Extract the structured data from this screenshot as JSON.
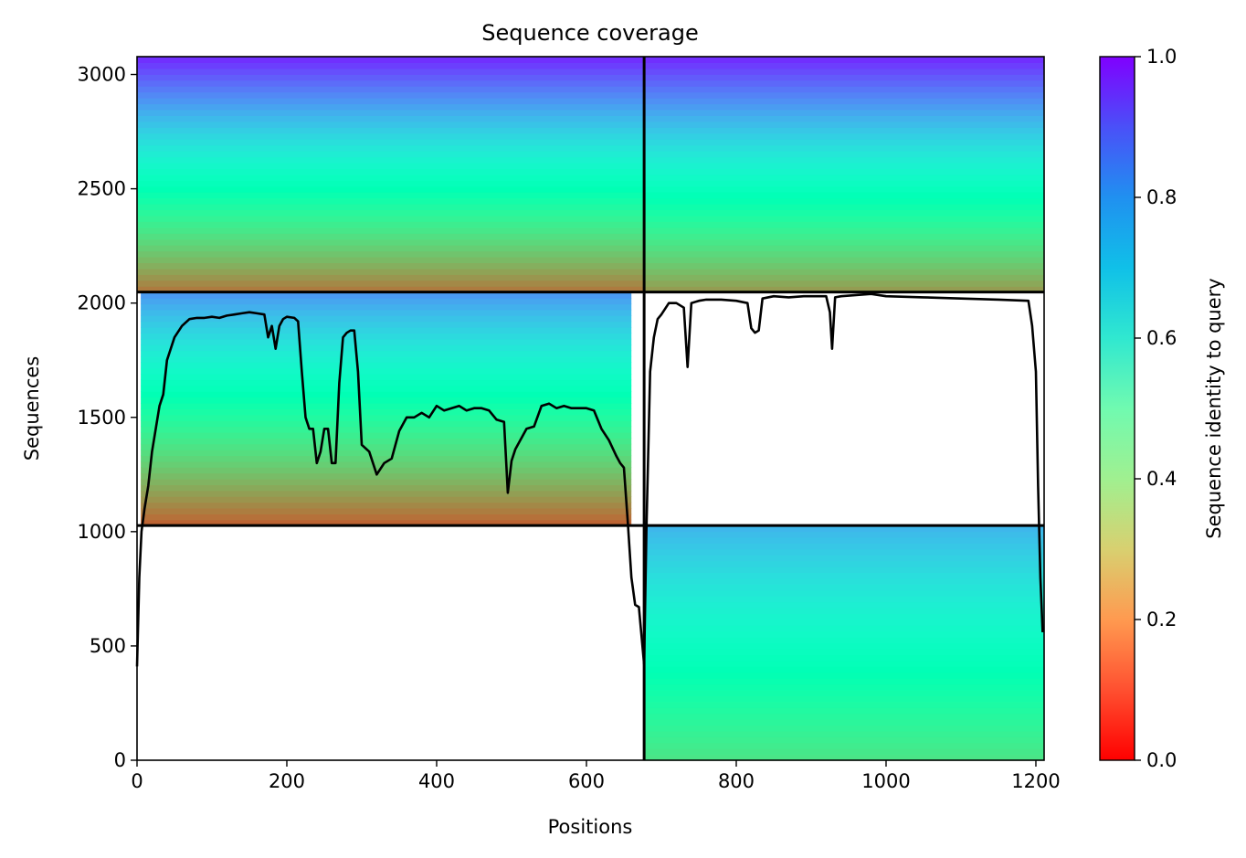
{
  "chart_data": {
    "type": "heatmap",
    "title": "Sequence coverage",
    "xlabel": "Positions",
    "ylabel": "Sequences",
    "xlim": [
      0,
      1211
    ],
    "ylim": [
      0,
      3078
    ],
    "x_ticks": [
      0,
      200,
      400,
      600,
      800,
      1000,
      1200
    ],
    "y_ticks": [
      0,
      500,
      1000,
      1500,
      2000,
      2500,
      3000
    ],
    "colorbar": {
      "label": "Sequence identity to query",
      "range": [
        0,
        1
      ],
      "ticks": [
        "0.0",
        "0.2",
        "0.4",
        "0.6",
        "0.8",
        "1.0"
      ],
      "colormap": "rainbow"
    },
    "chain_boundary_x": 677,
    "group_boundaries_y": [
      1027,
      2048
    ],
    "blocks": [
      {
        "name": "paired-upper",
        "x": [
          0,
          677
        ],
        "y": [
          2048,
          3078
        ],
        "identity_bottom": 0.15,
        "identity_top": 0.95,
        "extent_x": [
          0,
          677
        ]
      },
      {
        "name": "paired-upper-right",
        "x": [
          677,
          1211
        ],
        "y": [
          2048,
          3078
        ],
        "identity_bottom": 0.2,
        "identity_top": 0.95,
        "extent_x": [
          677,
          1211
        ]
      },
      {
        "name": "chain-a-unpaired",
        "x": [
          0,
          677
        ],
        "y": [
          1027,
          2048
        ],
        "identity_bottom": 0.12,
        "identity_top": 0.8,
        "extent_x": [
          5,
          660
        ]
      },
      {
        "name": "chain-b-unpaired",
        "x": [
          677,
          1211
        ],
        "y": [
          0,
          1027
        ],
        "identity_bottom": 0.35,
        "identity_top": 0.75,
        "extent_x": [
          677,
          1211
        ]
      }
    ],
    "coverage_line": {
      "x": [
        0,
        3,
        6,
        10,
        15,
        20,
        25,
        30,
        35,
        40,
        50,
        60,
        70,
        80,
        90,
        100,
        110,
        120,
        130,
        140,
        150,
        160,
        170,
        175,
        180,
        185,
        190,
        195,
        200,
        210,
        215,
        220,
        225,
        230,
        235,
        240,
        245,
        250,
        255,
        260,
        265,
        270,
        275,
        280,
        285,
        290,
        295,
        300,
        310,
        320,
        330,
        340,
        350,
        360,
        370,
        380,
        390,
        400,
        410,
        420,
        430,
        440,
        450,
        460,
        470,
        480,
        490,
        495,
        500,
        505,
        510,
        520,
        530,
        540,
        550,
        560,
        570,
        580,
        590,
        600,
        610,
        620,
        630,
        640,
        645,
        650,
        655,
        660,
        665,
        670,
        677,
        680,
        685,
        690,
        695,
        700,
        710,
        720,
        730,
        735,
        740,
        750,
        760,
        780,
        800,
        815,
        820,
        825,
        830,
        835,
        850,
        870,
        890,
        900,
        920,
        925,
        928,
        932,
        940,
        960,
        980,
        1000,
        1050,
        1100,
        1150,
        1190,
        1195,
        1200,
        1203,
        1206,
        1209,
        1211
      ],
      "y": [
        410,
        800,
        1000,
        1100,
        1200,
        1350,
        1450,
        1550,
        1600,
        1750,
        1850,
        1900,
        1930,
        1935,
        1935,
        1940,
        1935,
        1945,
        1950,
        1955,
        1960,
        1955,
        1950,
        1850,
        1900,
        1800,
        1900,
        1930,
        1940,
        1935,
        1920,
        1700,
        1500,
        1450,
        1450,
        1300,
        1350,
        1450,
        1450,
        1300,
        1300,
        1650,
        1850,
        1870,
        1880,
        1880,
        1700,
        1380,
        1350,
        1250,
        1300,
        1320,
        1440,
        1500,
        1500,
        1520,
        1500,
        1550,
        1530,
        1540,
        1550,
        1530,
        1540,
        1540,
        1530,
        1490,
        1480,
        1170,
        1310,
        1360,
        1390,
        1450,
        1460,
        1550,
        1560,
        1540,
        1550,
        1540,
        1540,
        1540,
        1530,
        1450,
        1400,
        1330,
        1300,
        1280,
        1050,
        800,
        680,
        670,
        420,
        1000,
        1700,
        1850,
        1930,
        1950,
        2000,
        2000,
        1980,
        1720,
        2000,
        2010,
        2015,
        2015,
        2010,
        2000,
        1890,
        1870,
        1880,
        2020,
        2030,
        2025,
        2030,
        2030,
        2030,
        1960,
        1800,
        2025,
        2030,
        2035,
        2040,
        2030,
        2025,
        2020,
        2015,
        2010,
        1900,
        1700,
        1200,
        800,
        560
      ]
    }
  }
}
